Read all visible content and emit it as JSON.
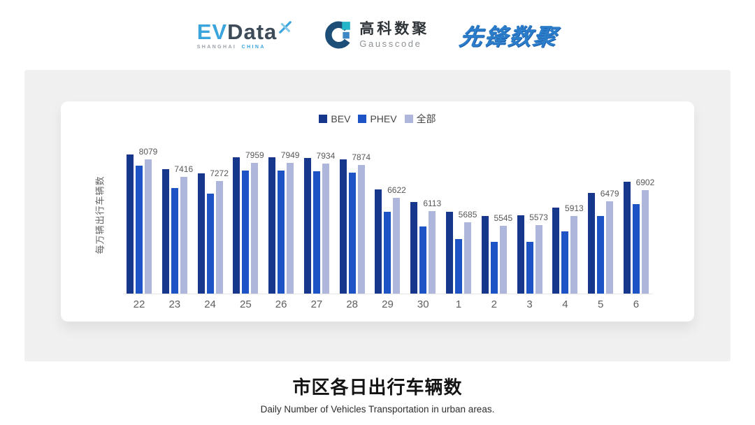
{
  "header": {
    "evdata": {
      "ev": "EV",
      "data": "Data",
      "mark_icon": "x-cross",
      "tagline_city": "SHANGHAI",
      "tagline_country": "CHINA"
    },
    "gausscode": {
      "mark_icon": "g-ring",
      "cn": "高科数聚",
      "en": "Gausscode"
    },
    "xianfeng": {
      "name": "先锋数聚"
    }
  },
  "chart": {
    "legend_labels": [
      "BEV",
      "PHEV",
      "全部"
    ],
    "colors": {
      "bev": "#17378c",
      "phev": "#1e53c6",
      "all": "#aeb6dc"
    }
  },
  "chart_data": {
    "type": "bar",
    "title": "市区各日出行车辆数",
    "subtitle": "Daily Number of Vehicles Transportation in urban areas.",
    "xlabel": "",
    "ylabel": "每万辆出行车辆数",
    "categories": [
      "22",
      "23",
      "24",
      "25",
      "26",
      "27",
      "28",
      "29",
      "30",
      "1",
      "2",
      "3",
      "4",
      "5",
      "6"
    ],
    "series": [
      {
        "key": "bev",
        "name": "BEV",
        "color": "#17378c",
        "estimated": true,
        "values": [
          8260,
          7700,
          7560,
          8170,
          8170,
          8150,
          8080,
          6950,
          6450,
          6090,
          5930,
          5950,
          6250,
          6810,
          7220
        ]
      },
      {
        "key": "phev",
        "name": "PHEV",
        "color": "#1e53c6",
        "estimated": true,
        "values": [
          7850,
          6990,
          6790,
          7670,
          7660,
          7630,
          7580,
          6090,
          5530,
          5050,
          4930,
          4930,
          5350,
          5930,
          6390
        ]
      },
      {
        "key": "all",
        "name": "全部",
        "color": "#aeb6dc",
        "labeled": true,
        "values": [
          8079,
          7416,
          7272,
          7959,
          7949,
          7934,
          7874,
          6622,
          6113,
          5685,
          5545,
          5573,
          5913,
          6479,
          6902
        ]
      }
    ],
    "data_labels": [
      8079,
      7416,
      7272,
      7959,
      7949,
      7934,
      7874,
      6622,
      6113,
      5685,
      5545,
      5573,
      5913,
      6479,
      6902
    ],
    "data_label_series": "全部",
    "ylim": [
      2965,
      8965
    ],
    "grid": false,
    "legend_position": "top-center"
  },
  "caption": {
    "title": "市区各日出行车辆数",
    "subtitle": "Daily Number of Vehicles Transportation in urban areas."
  }
}
